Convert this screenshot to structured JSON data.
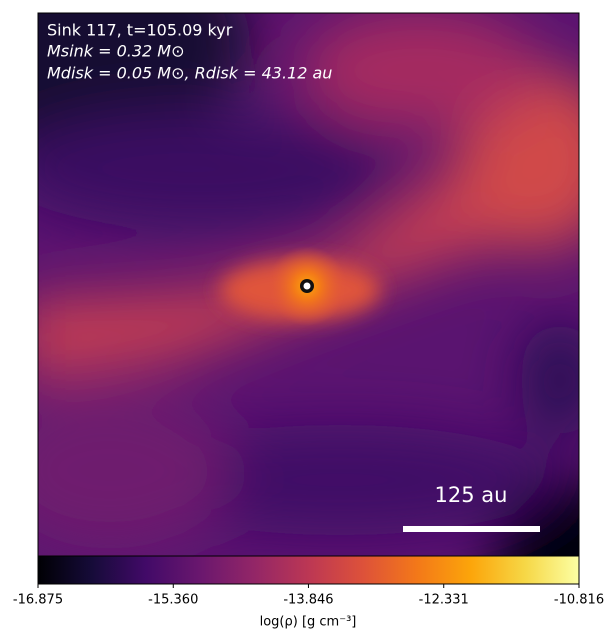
{
  "chart_data": {
    "type": "image",
    "annotations": [
      "Sink 117, t=105.09 kyr",
      "Msink = 0.32 M⊙",
      "Mdisk = 0.05 M⊙, Rdisk = 43.12 au"
    ],
    "scale_bar_label": "125 au",
    "colormap": "inferno",
    "clim": [
      -16.875,
      -10.816
    ],
    "cticks": [
      -16.875,
      {
        "value": -15.36,
        "label": "-15.360"
      },
      -13.846,
      -12.331,
      -10.816
    ],
    "colorbar_label": "log(ρ) [g cm⁻³]"
  }
}
